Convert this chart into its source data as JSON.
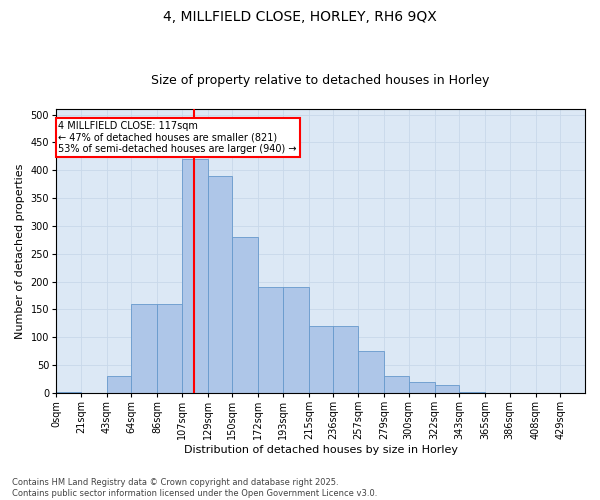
{
  "title1": "4, MILLFIELD CLOSE, HORLEY, RH6 9QX",
  "title2": "Size of property relative to detached houses in Horley",
  "xlabel": "Distribution of detached houses by size in Horley",
  "ylabel": "Number of detached properties",
  "bar_color": "#aec6e8",
  "bar_edge_color": "#6699cc",
  "vline_x": 117,
  "vline_color": "red",
  "annotation_text": "4 MILLFIELD CLOSE: 117sqm\n← 47% of detached houses are smaller (821)\n53% of semi-detached houses are larger (940) →",
  "annotation_box_color": "white",
  "annotation_box_edge": "red",
  "bins": [
    0,
    21,
    43,
    64,
    86,
    107,
    129,
    150,
    172,
    193,
    215,
    236,
    257,
    279,
    300,
    322,
    343,
    365,
    386,
    408,
    429,
    450
  ],
  "bin_labels": [
    "0sqm",
    "21sqm",
    "43sqm",
    "64sqm",
    "86sqm",
    "107sqm",
    "129sqm",
    "150sqm",
    "172sqm",
    "193sqm",
    "215sqm",
    "236sqm",
    "257sqm",
    "279sqm",
    "300sqm",
    "322sqm",
    "343sqm",
    "365sqm",
    "386sqm",
    "408sqm",
    "429sqm"
  ],
  "bar_heights": [
    1,
    0,
    30,
    160,
    160,
    420,
    390,
    280,
    190,
    190,
    120,
    120,
    75,
    30,
    20,
    15,
    1,
    0,
    0,
    0,
    0
  ],
  "ylim": [
    0,
    510
  ],
  "yticks": [
    0,
    50,
    100,
    150,
    200,
    250,
    300,
    350,
    400,
    450,
    500
  ],
  "grid_color": "#c8d8ea",
  "bg_color": "#dce8f5",
  "footnote": "Contains HM Land Registry data © Crown copyright and database right 2025.\nContains public sector information licensed under the Open Government Licence v3.0.",
  "title_fontsize": 10,
  "subtitle_fontsize": 9,
  "axis_label_fontsize": 8,
  "tick_fontsize": 7,
  "footnote_fontsize": 6
}
